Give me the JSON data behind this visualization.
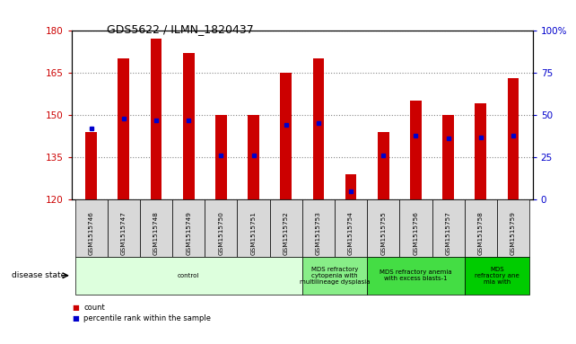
{
  "title": "GDS5622 / ILMN_1820437",
  "samples": [
    "GSM1515746",
    "GSM1515747",
    "GSM1515748",
    "GSM1515749",
    "GSM1515750",
    "GSM1515751",
    "GSM1515752",
    "GSM1515753",
    "GSM1515754",
    "GSM1515755",
    "GSM1515756",
    "GSM1515757",
    "GSM1515758",
    "GSM1515759"
  ],
  "count_values": [
    144,
    170,
    177,
    172,
    150,
    150,
    165,
    170,
    129,
    144,
    155,
    150,
    154,
    163
  ],
  "count_base": 120,
  "percentile_values": [
    42,
    48,
    47,
    47,
    26,
    26,
    44,
    45,
    5,
    26,
    38,
    36,
    37,
    38
  ],
  "ylim_left": [
    120,
    180
  ],
  "ylim_right": [
    0,
    100
  ],
  "yticks_left": [
    120,
    135,
    150,
    165,
    180
  ],
  "yticks_right": [
    0,
    25,
    50,
    75,
    100
  ],
  "bar_color": "#cc0000",
  "dot_color": "#0000cc",
  "grid_color": "#888888",
  "disease_groups": [
    {
      "label": "control",
      "start": 0,
      "end": 7,
      "color": "#ddffdd"
    },
    {
      "label": "MDS refractory\ncytopenia with\nmultilineage dysplasia",
      "start": 7,
      "end": 9,
      "color": "#88ee88"
    },
    {
      "label": "MDS refractory anemia\nwith excess blasts-1",
      "start": 9,
      "end": 12,
      "color": "#44dd44"
    },
    {
      "label": "MDS\nrefractory ane\nmia with",
      "start": 12,
      "end": 14,
      "color": "#00cc00"
    }
  ],
  "tick_label_color_left": "#cc0000",
  "tick_label_color_right": "#0000cc",
  "legend_count": "count",
  "legend_percentile": "percentile rank within the sample"
}
